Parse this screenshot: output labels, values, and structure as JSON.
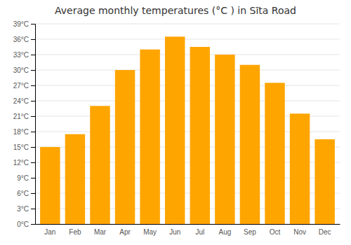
{
  "chart_data": {
    "type": "bar",
    "title": "Average monthly temperatures (°C ) in Sīta Road",
    "categories": [
      "Jan",
      "Feb",
      "Mar",
      "Apr",
      "May",
      "Jun",
      "Jul",
      "Aug",
      "Sep",
      "Oct",
      "Nov",
      "Dec"
    ],
    "values": [
      15,
      17.5,
      23,
      30,
      34,
      36.5,
      34.5,
      33,
      31,
      27.5,
      21.5,
      16.5
    ],
    "color": "#FFA500",
    "ylim": [
      0,
      39
    ],
    "yticks": [
      {
        "value": 0,
        "label": "0°C"
      },
      {
        "value": 3,
        "label": "3°C"
      },
      {
        "value": 6,
        "label": "6°C"
      },
      {
        "value": 9,
        "label": "9°C"
      },
      {
        "value": 12,
        "label": "12°C"
      },
      {
        "value": 15,
        "label": "15°C"
      },
      {
        "value": 18,
        "label": "18°C"
      },
      {
        "value": 21,
        "label": "21°C"
      },
      {
        "value": 24,
        "label": "24°C"
      },
      {
        "value": 27,
        "label": "27°C"
      },
      {
        "value": 30,
        "label": "30°C"
      },
      {
        "value": 33,
        "label": "33°C"
      },
      {
        "value": 36,
        "label": "36°C"
      },
      {
        "value": 39,
        "label": "39°C"
      }
    ],
    "grid": true
  }
}
